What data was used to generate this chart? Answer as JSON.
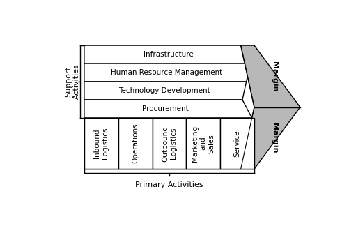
{
  "bg_color": "#ffffff",
  "border_color": "#000000",
  "fill_white": "#ffffff",
  "fill_gray": "#b8b8b8",
  "support_activities": [
    "Infrastructure",
    "Human Resource Management",
    "Technology Development",
    "Procurement"
  ],
  "primary_activities": [
    "Inbound\nLogistics",
    "Operations",
    "Outbound\nLogistics",
    "Marketing\nand\nSales",
    "Service"
  ],
  "margin_label": "Margin",
  "support_label": "Support\nActivities",
  "primary_label": "Primary Activities",
  "font_size_main": 7.5,
  "font_size_label": 8.0
}
